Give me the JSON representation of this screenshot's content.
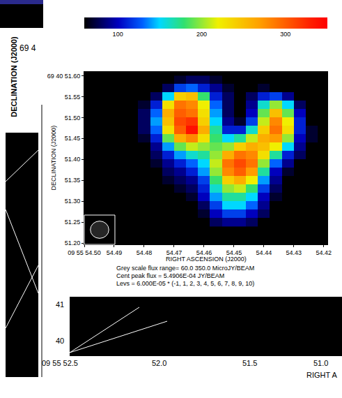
{
  "chart_data": {
    "type": "heatmap",
    "x_label": "RIGHT ASCENSION (J2000)",
    "y_label": "DECLINATION (J2000)",
    "annotations": [
      "Grey scale flux range= 60.0 350.0 MicroJY/BEAM",
      "Cent peak flux = 5.4906E-04 JY/BEAM",
      "Levs = 6.000E-05 * (-1, 1, 2, 3, 4, 5, 6, 7, 8, 9, 10)"
    ],
    "x": [
      54.484,
      54.48,
      54.476,
      54.472,
      54.468,
      54.464,
      54.46,
      54.456,
      54.452,
      54.448,
      54.444,
      54.44,
      54.436,
      54.432,
      54.428,
      54.424
    ],
    "y": [
      51.25,
      51.27,
      51.29,
      51.31,
      51.33,
      51.35,
      51.37,
      51.39,
      51.41,
      51.43,
      51.45,
      51.47,
      51.49,
      51.51,
      51.53,
      51.55,
      51.57,
      51.59
    ],
    "z": [
      [
        null,
        null,
        null,
        null,
        null,
        null,
        null,
        80,
        90,
        90,
        80,
        null,
        null,
        null,
        null,
        null
      ],
      [
        null,
        null,
        null,
        null,
        null,
        null,
        70,
        100,
        120,
        120,
        100,
        80,
        null,
        null,
        null,
        null
      ],
      [
        null,
        null,
        null,
        null,
        null,
        null,
        80,
        120,
        150,
        150,
        130,
        90,
        null,
        null,
        null,
        null
      ],
      [
        null,
        null,
        null,
        null,
        null,
        70,
        100,
        140,
        170,
        170,
        150,
        100,
        70,
        null,
        null,
        null
      ],
      [
        null,
        null,
        null,
        null,
        70,
        80,
        110,
        160,
        200,
        210,
        180,
        120,
        80,
        null,
        null,
        null
      ],
      [
        null,
        null,
        null,
        70,
        80,
        90,
        120,
        180,
        240,
        260,
        220,
        140,
        90,
        null,
        null,
        null
      ],
      [
        null,
        null,
        null,
        80,
        90,
        110,
        140,
        200,
        280,
        300,
        270,
        170,
        100,
        70,
        null,
        null
      ],
      [
        null,
        null,
        70,
        90,
        110,
        130,
        150,
        210,
        290,
        310,
        290,
        200,
        130,
        90,
        null,
        null
      ],
      [
        null,
        null,
        80,
        110,
        140,
        160,
        170,
        200,
        260,
        290,
        280,
        230,
        170,
        110,
        80,
        null
      ],
      [
        null,
        null,
        90,
        140,
        190,
        210,
        200,
        190,
        200,
        240,
        260,
        250,
        220,
        150,
        90,
        null
      ],
      [
        null,
        70,
        110,
        190,
        260,
        280,
        230,
        180,
        150,
        170,
        210,
        260,
        270,
        200,
        100,
        70
      ],
      [
        null,
        80,
        130,
        230,
        300,
        340,
        260,
        170,
        110,
        110,
        160,
        240,
        290,
        230,
        110,
        70
      ],
      [
        null,
        80,
        140,
        250,
        310,
        320,
        240,
        150,
        90,
        70,
        120,
        210,
        280,
        220,
        110,
        null
      ],
      [
        null,
        80,
        130,
        260,
        300,
        290,
        230,
        140,
        80,
        null,
        100,
        190,
        250,
        190,
        100,
        null
      ],
      [
        null,
        70,
        110,
        230,
        290,
        280,
        220,
        130,
        80,
        null,
        90,
        160,
        200,
        150,
        80,
        null
      ],
      [
        null,
        null,
        80,
        150,
        240,
        250,
        180,
        110,
        80,
        null,
        80,
        110,
        120,
        90,
        null,
        null
      ],
      [
        null,
        null,
        null,
        80,
        120,
        130,
        110,
        90,
        70,
        null,
        null,
        70,
        null,
        null,
        null,
        null
      ],
      [
        null,
        null,
        null,
        null,
        70,
        80,
        80,
        70,
        null,
        null,
        null,
        null,
        null,
        null,
        null,
        null
      ]
    ],
    "zlim": [
      60,
      350
    ],
    "zticks": [
      100,
      200,
      300
    ],
    "xlim": [
      54.5,
      54.4188
    ],
    "xticks": [
      {
        "value": 54.5,
        "label": "09 55 54.50"
      },
      54.49,
      54.48,
      54.47,
      54.46,
      54.45,
      54.44,
      54.43,
      54.42
    ],
    "ylim": [
      51.197,
      51.609
    ],
    "yticks": [
      {
        "value": 51.2,
        "label": "51.20"
      },
      51.25,
      {
        "value": 51.3,
        "label": "51.30"
      },
      51.35,
      {
        "value": 51.4,
        "label": "51.40"
      },
      51.45,
      {
        "value": 51.5,
        "label": "51.50"
      },
      51.55,
      {
        "value": 51.6,
        "label": "69 40 51.60"
      }
    ]
  },
  "background": {
    "corner_label": "69 4",
    "y_label": "DECLINATION (J2000)",
    "yticks": [
      "41",
      "40"
    ],
    "xticks": [
      "09 55 52.5",
      "52.0",
      "51.5",
      "51.0"
    ],
    "x_label": "RIGHT A"
  }
}
